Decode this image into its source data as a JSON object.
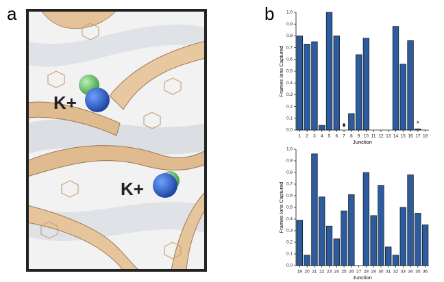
{
  "panel_labels": [
    "a",
    "b"
  ],
  "annotations": [
    "K+",
    "K+"
  ],
  "chart_data": [
    {
      "type": "bar",
      "color": "#2d5c9e",
      "y_label": "Frames Ions Captured",
      "x_label": "Junction",
      "categories": [
        "1",
        "2",
        "3",
        "4",
        "5",
        "6",
        "7",
        "8",
        "9",
        "10",
        "11",
        "12",
        "13",
        "14",
        "15",
        "16",
        "17",
        "18"
      ],
      "values": [
        0.8,
        0.73,
        0.75,
        0.04,
        1.0,
        0.8,
        null,
        0.14,
        0.64,
        0.78,
        0,
        0,
        0,
        0.88,
        0.56,
        0.76,
        0.01,
        0
      ],
      "annotations": [
        {
          "category": "7",
          "text": "♦"
        },
        {
          "category": "17",
          "text": "*"
        }
      ],
      "ylim": [
        0,
        1
      ],
      "yticks": [
        {
          "value": 0,
          "label": "0.0"
        },
        0.1,
        0.2,
        0.3,
        0.4,
        0.5,
        0.6,
        0.7,
        0.8,
        0.9,
        {
          "value": 1,
          "label": "1.0"
        }
      ]
    },
    {
      "type": "bar",
      "color": "#2d5c9e",
      "y_label": "Frames Ions Captured",
      "x_label": "Junction",
      "categories": [
        "19",
        "20",
        "21",
        "22",
        "23",
        "24",
        "25",
        "26",
        "27",
        "28",
        "29",
        "30",
        "31",
        "32",
        "33",
        "34",
        "35",
        "36"
      ],
      "values": [
        0.39,
        0.09,
        0.96,
        0.59,
        0.34,
        0.23,
        0.47,
        0.61,
        0,
        0.8,
        0.43,
        0.69,
        0.16,
        0.09,
        0.5,
        0.78,
        0.45,
        0.35
      ],
      "ylim": [
        0,
        1
      ],
      "yticks": [
        {
          "value": 0,
          "label": "0.0"
        },
        0.1,
        0.2,
        0.3,
        0.4,
        0.5,
        0.6,
        0.7,
        0.8,
        0.9,
        {
          "value": 1,
          "label": "1.0"
        }
      ]
    }
  ]
}
